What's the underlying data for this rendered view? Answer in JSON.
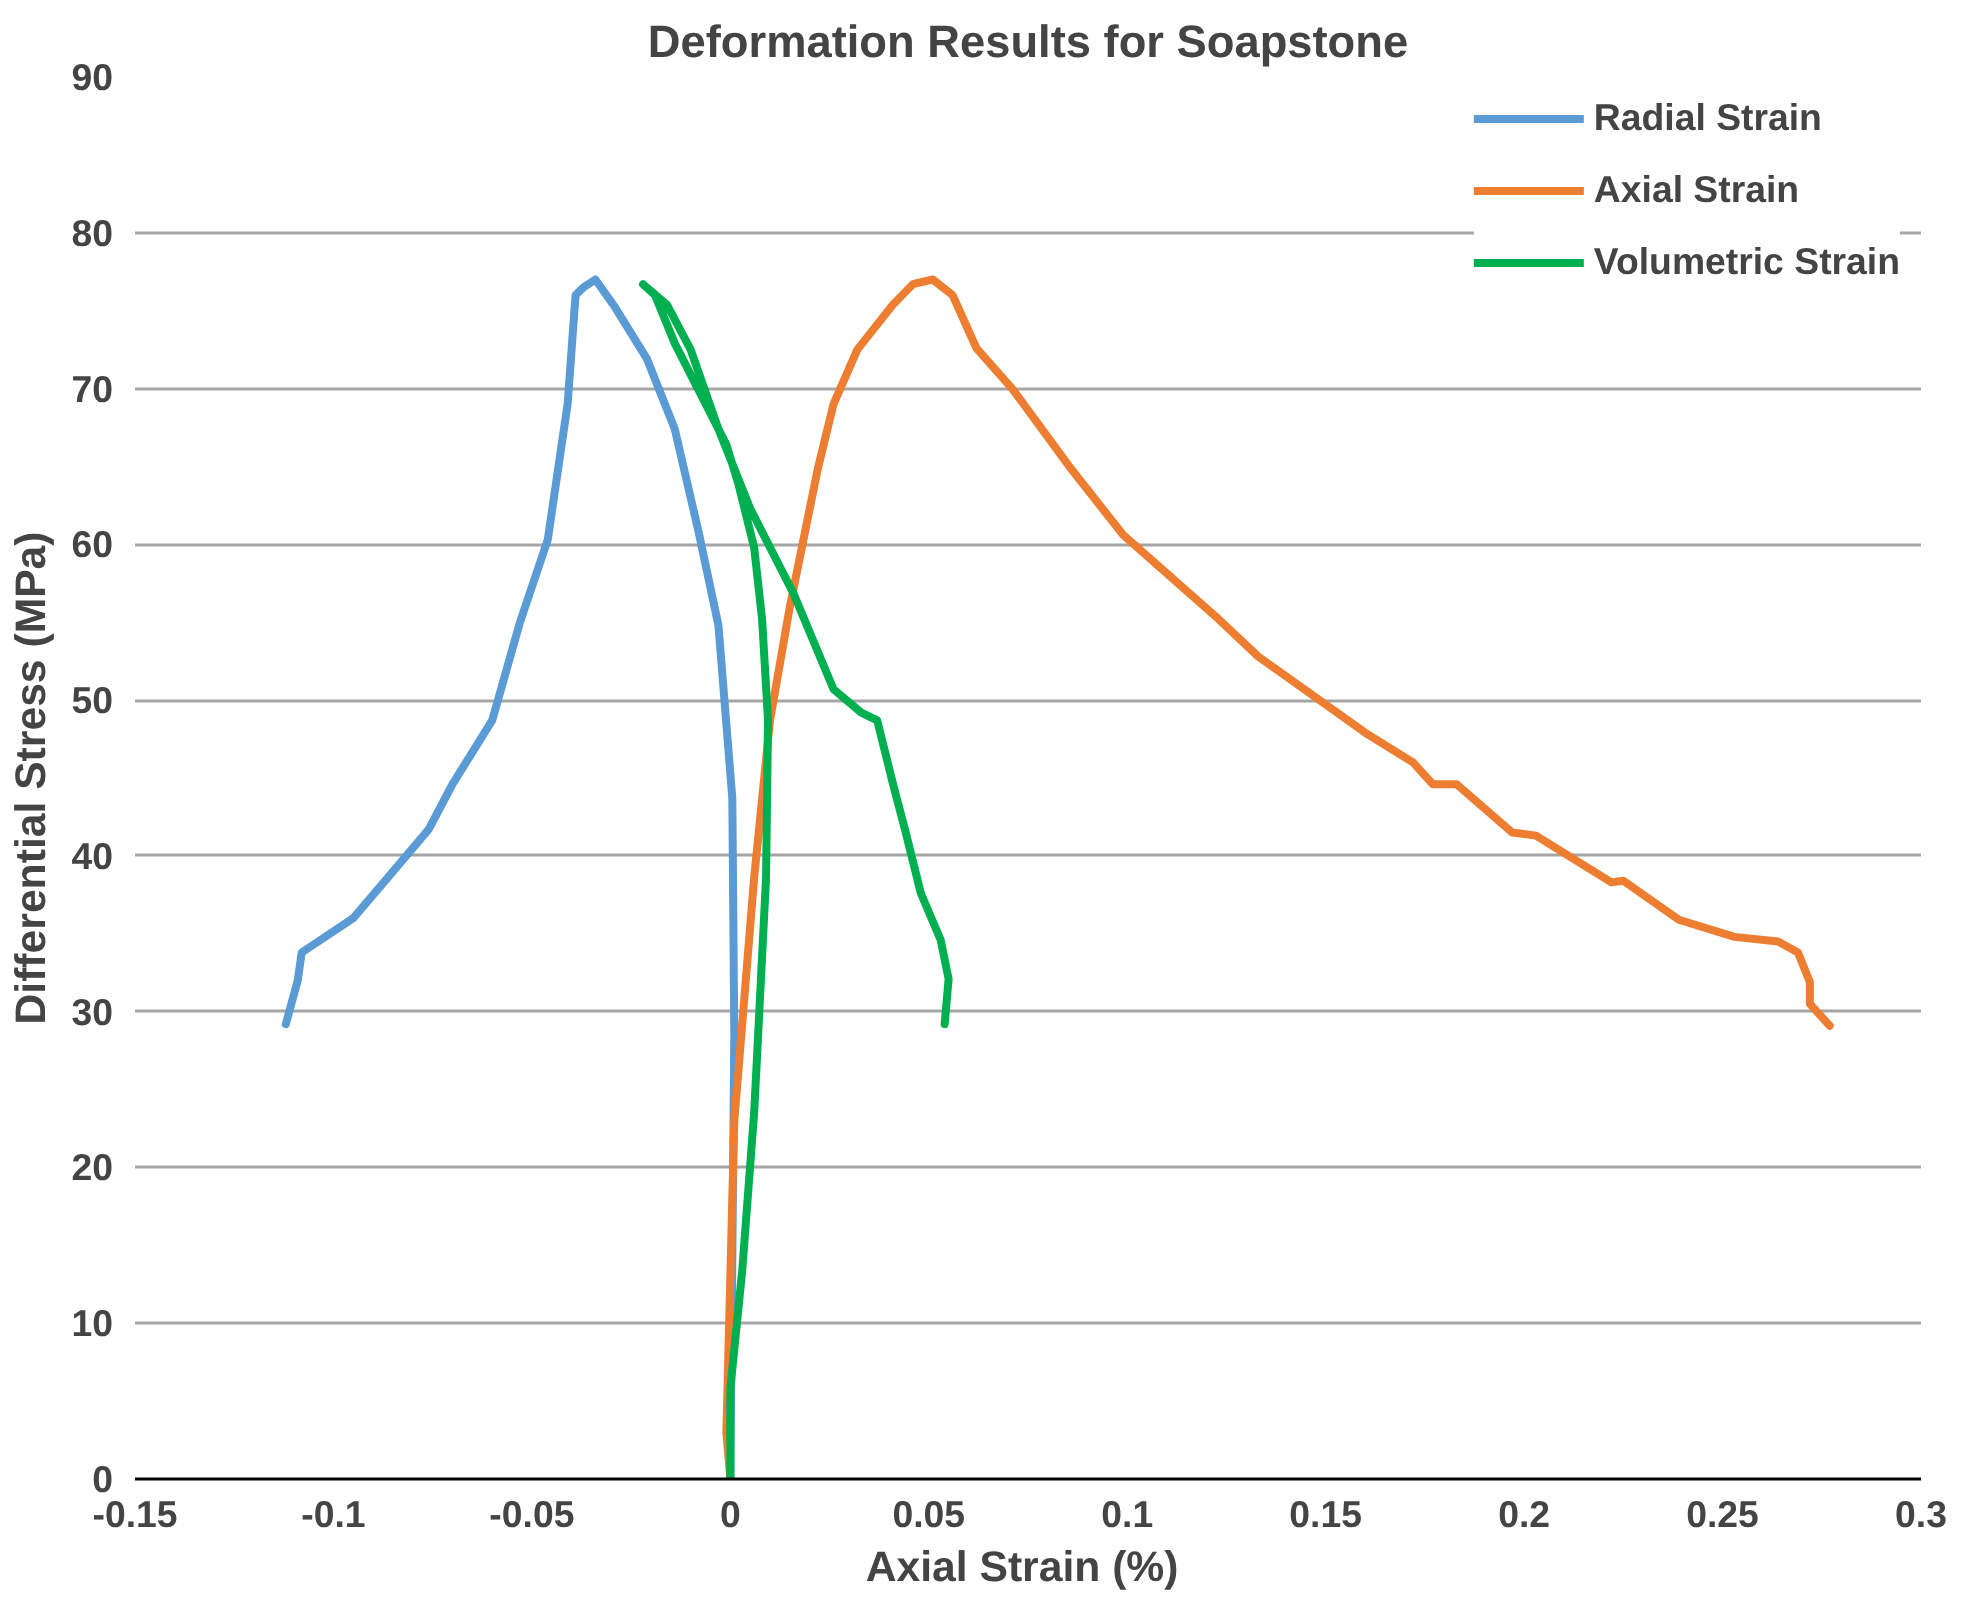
{
  "chart_data": {
    "type": "line",
    "title": "Deformation Results for Soapstone",
    "xlabel": "Axial Strain  (%)",
    "ylabel": "Differential Stress (MPa)",
    "xlim": [
      -0.15,
      0.3
    ],
    "ylim": [
      0,
      90
    ],
    "xticks": [
      -0.15,
      -0.1,
      -0.05,
      0,
      0.05,
      0.1,
      0.15,
      0.2,
      0.25,
      0.3
    ],
    "yticks": [
      0,
      10,
      20,
      30,
      40,
      50,
      60,
      70,
      80,
      90
    ],
    "grid": "y",
    "legend": "top right",
    "marker": "none",
    "line_style": "solid",
    "series": [
      {
        "name": "Radial Strain",
        "color": "#5b9bd5",
        "x": [
          0,
          0.001,
          0.0005,
          -0.003,
          -0.008,
          -0.014,
          -0.021,
          -0.029,
          -0.034,
          -0.037,
          -0.039,
          -0.041,
          -0.046,
          -0.053,
          -0.06,
          -0.07,
          -0.076,
          -0.087,
          -0.095,
          -0.108,
          -0.109,
          -0.112
        ],
        "values": [
          0,
          28.5,
          43.7,
          54.8,
          60.8,
          67.4,
          71.9,
          75.2,
          77,
          76.5,
          76,
          69,
          60.3,
          55,
          48.7,
          44.6,
          41.7,
          38.4,
          36,
          33.8,
          32,
          29.2
        ]
      },
      {
        "name": "Axial Strain",
        "color": "#ed7d31",
        "x": [
          0,
          -0.001,
          0.001,
          0.006,
          0.01,
          0.015,
          0.022,
          0.026,
          0.032,
          0.041,
          0.046,
          0.051,
          0.056,
          0.062,
          0.071,
          0.086,
          0.099,
          0.123,
          0.133,
          0.16,
          0.172,
          0.177,
          0.183,
          0.197,
          0.203,
          0.222,
          0.225,
          0.239,
          0.253,
          0.264,
          0.269,
          0.272,
          0.272,
          0.277
        ],
        "values": [
          0,
          3,
          23,
          38.6,
          48.7,
          56,
          64.8,
          69,
          72.5,
          75.4,
          76.7,
          77,
          76,
          72.6,
          70,
          64.8,
          60.6,
          55.2,
          52.8,
          47.9,
          46,
          44.6,
          44.6,
          41.5,
          41.3,
          38.3,
          38.4,
          35.9,
          34.8,
          34.5,
          33.8,
          31.9,
          30.5,
          29.1
        ]
      },
      {
        "name": "Volumetric Strain",
        "color": "#00b050",
        "x": [
          0,
          0,
          0.003,
          0.006,
          0.007,
          0.009,
          0.0095,
          0.008,
          0.006,
          0.002,
          -0.001,
          -0.014,
          -0.019,
          -0.022,
          -0.016,
          -0.01,
          -0.003,
          0.005,
          0.016,
          0.026,
          0.033,
          0.037,
          0.041,
          0.044,
          0.048,
          0.053,
          0.055,
          0.054
        ],
        "values": [
          0,
          5.8,
          13.4,
          23.5,
          28.5,
          38.6,
          48.7,
          55.2,
          59.8,
          63.9,
          66.4,
          72.9,
          76,
          76.7,
          75.4,
          72.5,
          67.4,
          62.3,
          56.8,
          50.7,
          49.2,
          48.7,
          44.6,
          41.7,
          37.6,
          34.6,
          32.1,
          29.2
        ]
      }
    ]
  }
}
